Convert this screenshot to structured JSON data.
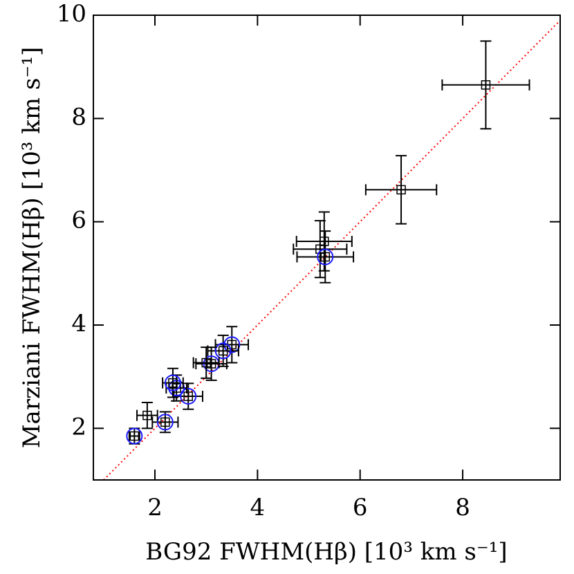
{
  "chart_data": {
    "type": "scatter",
    "x_label": "BG92 FWHM(Hβ) [10³ km s⁻¹]",
    "y_label": "Marziani FWHM(Hβ) [10³ km s⁻¹]",
    "x": [
      8.45,
      6.8,
      5.3,
      5.22,
      5.32,
      3.5,
      3.33,
      3.1,
      3.0,
      2.65,
      2.42,
      2.35,
      2.2,
      1.85,
      1.6
    ],
    "values": [
      8.65,
      6.62,
      5.62,
      5.47,
      5.32,
      3.62,
      3.5,
      3.25,
      3.27,
      2.62,
      2.78,
      2.88,
      2.12,
      2.25,
      1.85
    ],
    "xerr": [
      0.85,
      0.69,
      0.54,
      0.52,
      0.55,
      0.32,
      0.3,
      0.3,
      0.25,
      0.28,
      0.2,
      0.2,
      0.25,
      0.2,
      0.1
    ],
    "yerr": [
      0.85,
      0.66,
      0.57,
      0.55,
      0.5,
      0.35,
      0.3,
      0.32,
      0.3,
      0.25,
      0.25,
      0.28,
      0.2,
      0.25,
      0.15
    ],
    "highlight": [
      false,
      false,
      false,
      false,
      true,
      true,
      true,
      true,
      false,
      true,
      true,
      true,
      true,
      false,
      true
    ],
    "color": "#000000",
    "highlight_color": "#1a1aff",
    "reference_line_color": "#ff0000",
    "reference_line": "y=x",
    "xlim": [
      0.8,
      9.9
    ],
    "ylim": [
      1,
      10
    ],
    "xticks": [
      2,
      4,
      6,
      8
    ],
    "yticks": [
      2,
      4,
      6,
      8,
      10
    ]
  }
}
